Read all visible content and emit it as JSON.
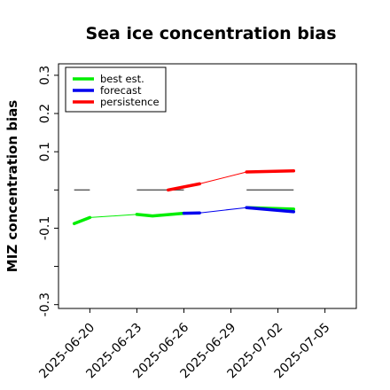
{
  "chart_data": {
    "type": "line",
    "title": "Sea ice concentration bias",
    "xlabel": "",
    "ylabel": "MIZ concentration bias",
    "ylim": [
      -0.31,
      0.33
    ],
    "xlim": [
      "2025-06-18",
      "2025-07-07"
    ],
    "yticks": [
      -0.3,
      -0.2,
      -0.1,
      0.0,
      0.1,
      0.2,
      0.3
    ],
    "ytick_labels": [
      "-0.3",
      "",
      "-0.1",
      "",
      "0.1",
      "0.2",
      "0.3"
    ],
    "xticks": [
      "2025-06-20",
      "2025-06-23",
      "2025-06-26",
      "2025-06-29",
      "2025-07-02",
      "2025-07-05"
    ],
    "highlight_xtick": "2025-06-26",
    "highlight_color": "#228b22",
    "grid": false,
    "legend_position": "top-left",
    "reference_segments": [
      {
        "x": [
          "2025-06-19",
          "2025-06-20"
        ],
        "y": 0.0
      },
      {
        "x": [
          "2025-06-23",
          "2025-06-26"
        ],
        "y": 0.0
      },
      {
        "x": [
          "2025-06-30",
          "2025-07-03"
        ],
        "y": 0.0
      }
    ],
    "series": [
      {
        "name": "best est.",
        "color": "#00ee00",
        "segments": [
          {
            "x": [
              "2025-06-19",
              "2025-06-20"
            ],
            "y": [
              -0.088,
              -0.072
            ]
          },
          {
            "x": [
              "2025-06-20",
              "2025-06-23"
            ],
            "y": [
              -0.072,
              -0.064
            ]
          },
          {
            "x": [
              "2025-06-23",
              "2025-06-24",
              "2025-06-26"
            ],
            "y": [
              -0.064,
              -0.068,
              -0.061
            ]
          },
          {
            "x": [
              "2025-06-30",
              "2025-07-03"
            ],
            "y": [
              -0.046,
              -0.05
            ]
          }
        ]
      },
      {
        "name": "forecast",
        "color": "#0000ee",
        "segments": [
          {
            "x": [
              "2025-06-26",
              "2025-06-27"
            ],
            "y": [
              -0.061,
              -0.06
            ]
          },
          {
            "x": [
              "2025-06-27",
              "2025-06-30"
            ],
            "y": [
              -0.06,
              -0.046
            ]
          },
          {
            "x": [
              "2025-06-30",
              "2025-07-03"
            ],
            "y": [
              -0.046,
              -0.057
            ]
          }
        ]
      },
      {
        "name": "persistence",
        "color": "#ff0000",
        "segments": [
          {
            "x": [
              "2025-06-25",
              "2025-06-27"
            ],
            "y": [
              0.0,
              0.016
            ]
          },
          {
            "x": [
              "2025-06-27",
              "2025-06-30"
            ],
            "y": [
              0.016,
              0.047
            ]
          },
          {
            "x": [
              "2025-06-30",
              "2025-07-03"
            ],
            "y": [
              0.047,
              0.05
            ]
          }
        ]
      }
    ]
  }
}
